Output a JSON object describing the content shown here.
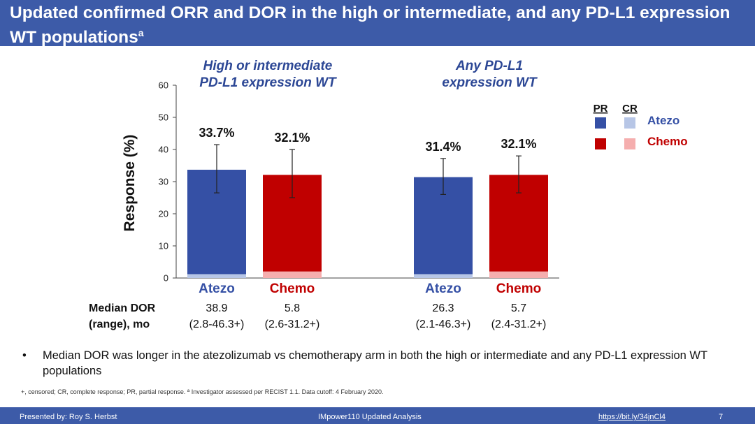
{
  "slide": {
    "title": "Updated confirmed ORR and DOR in the high or intermediate, and any PD-L1 expression WT populations",
    "title_sup": "a",
    "bullet": "Median DOR was longer in the atezolizumab vs chemotherapy arm in both the high or intermediate and any PD-L1 expression WT populations",
    "footnote": "+, censored; CR, complete response; PR, partial response. ª Investigator assessed per RECIST 1.1. Data cutoff: 4 February 2020.",
    "footer": {
      "presenter": "Presented by: Roy S. Herbst",
      "study": "IMpower110 Updated Analysis",
      "link": "https://bit.ly/34jnCl4",
      "page": "7"
    }
  },
  "chart_data": {
    "type": "bar",
    "stacked": true,
    "ylabel": "Response (%)",
    "ylim": [
      0,
      60
    ],
    "yticks": [
      0,
      10,
      20,
      30,
      40,
      50,
      60
    ],
    "groups": [
      {
        "title_lines": [
          "High or intermediate",
          "PD-L1 expression WT"
        ],
        "bars": [
          {
            "arm": "Atezo",
            "total": 33.7,
            "label": "33.7%",
            "cr": 1.2,
            "err_low": 26.5,
            "err_high": 41.5,
            "dor": "38.9",
            "dor_range": "(2.8-46.3+)"
          },
          {
            "arm": "Chemo",
            "total": 32.1,
            "label": "32.1%",
            "cr": 2.0,
            "err_low": 25.0,
            "err_high": 40.0,
            "dor": "5.8",
            "dor_range": "(2.6-31.2+)"
          }
        ]
      },
      {
        "title_lines": [
          "Any PD-L1",
          "expression WT"
        ],
        "bars": [
          {
            "arm": "Atezo",
            "total": 31.4,
            "label": "31.4%",
            "cr": 1.2,
            "err_low": 26.0,
            "err_high": 37.2,
            "dor": "26.3",
            "dor_range": "(2.1-46.3+)"
          },
          {
            "arm": "Chemo",
            "total": 32.1,
            "label": "32.1%",
            "cr": 2.0,
            "err_low": 26.5,
            "err_high": 38.0,
            "dor": "5.7",
            "dor_range": "(2.4-31.2+)"
          }
        ]
      }
    ],
    "dor_header": [
      "Median DOR",
      "(range), mo"
    ],
    "legend": {
      "headers": [
        "PR",
        "CR"
      ],
      "entries": [
        {
          "name": "Atezo",
          "pr_color": "#3550a5",
          "cr_color": "#b7c6e6",
          "text_color": "#3550a5"
        },
        {
          "name": "Chemo",
          "pr_color": "#c00000",
          "cr_color": "#f5aeae",
          "text_color": "#c00000"
        }
      ]
    },
    "colors": {
      "Atezo": "#3550a5",
      "Chemo": "#c00000",
      "Atezo_cr": "#b7c6e6",
      "Chemo_cr": "#f5aeae"
    }
  }
}
